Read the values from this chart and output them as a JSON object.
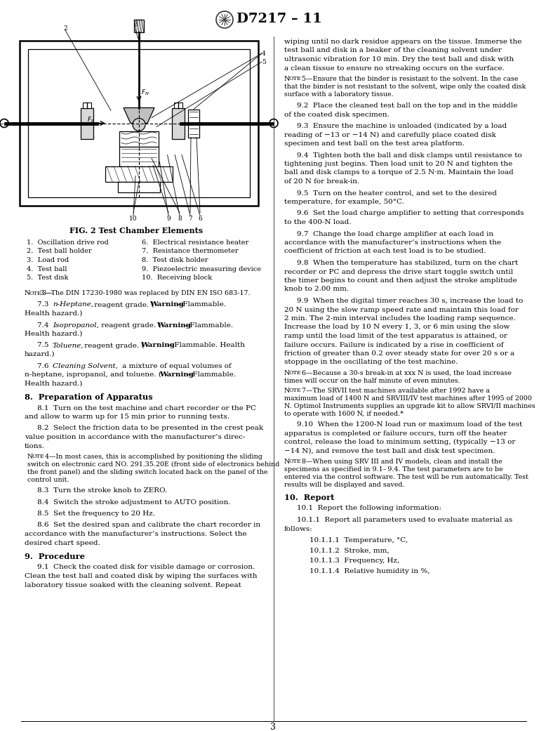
{
  "page_width": 7.78,
  "page_height": 10.41,
  "dpi": 100,
  "bg": "#ffffff",
  "header": "D7217 – 11",
  "fig_caption": "FIG. 2 Test Chamber Elements",
  "legend_left": [
    "1.  Oscillation drive rod",
    "2.  Test ball holder",
    "3.  Load rod",
    "4.  Test ball",
    "5.  Test disk"
  ],
  "legend_right": [
    "6.  Electrical resistance heater",
    "7.  Resistance thermometer",
    "8.  Test disk holder",
    "9.  Piezoelectric measuring device",
    "10.  Receiving block"
  ]
}
